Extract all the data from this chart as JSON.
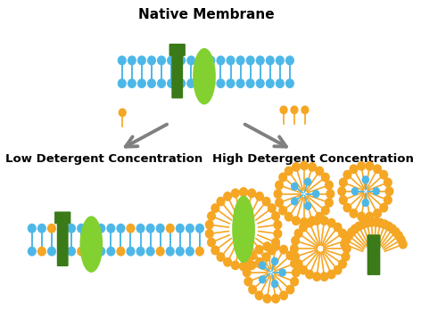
{
  "title_top": "Native Membrane",
  "title_left": "Low Detergent Concentration",
  "title_right": "High Detergent Concentration",
  "bg_color": "#ffffff",
  "blue_color": "#4db8e8",
  "orange_color": "#f5a623",
  "dark_green": "#3a7a18",
  "light_green": "#82d130",
  "gray_arrow": "#808080",
  "title_fontsize": 11,
  "subtitle_fontsize": 9.5
}
